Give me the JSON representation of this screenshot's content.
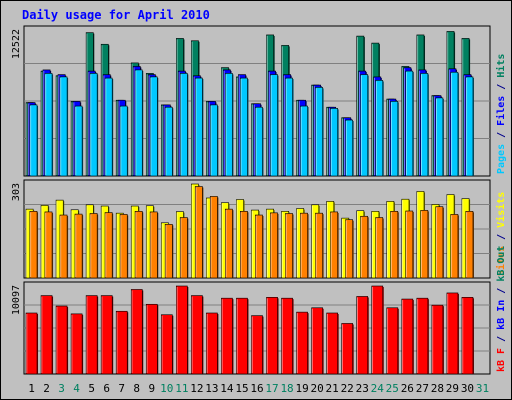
{
  "chart_data": {
    "type": "bar",
    "title": "Daily usage for April 2010",
    "days": [
      1,
      2,
      3,
      4,
      5,
      6,
      7,
      8,
      9,
      10,
      11,
      12,
      13,
      14,
      15,
      16,
      17,
      18,
      19,
      20,
      21,
      22,
      23,
      24,
      25,
      26,
      27,
      28,
      29,
      30,
      31
    ],
    "weekend_days": [
      3,
      4,
      10,
      11,
      17,
      18,
      24,
      25,
      31
    ],
    "grid": true,
    "panels": [
      {
        "name": "hits-files-pages",
        "ymax_label": "12522",
        "ymax": 12522,
        "right_label_parts": [
          {
            "text": "Pages",
            "color": "#00c8ff"
          },
          {
            "text": " / ",
            "color": "#00008b"
          },
          {
            "text": "Files",
            "color": "#0000ff"
          },
          {
            "text": " / ",
            "color": "#00008b"
          },
          {
            "text": "Hits",
            "color": "#008060"
          }
        ],
        "series": [
          {
            "name": "Hits",
            "color": "#008060",
            "values": [
              6300,
              9000,
              8600,
              6400,
              12300,
              11300,
              6500,
              9700,
              8800,
              6100,
              11800,
              11600,
              6400,
              9300,
              8500,
              6200,
              12100,
              11200,
              6500,
              7800,
              5900,
              5000,
              12000,
              11400,
              6600,
              9400,
              12100,
              6900,
              12400,
              11800,
              null
            ]
          },
          {
            "name": "Files",
            "color": "#0000ff",
            "values": [
              6300,
              9100,
              8700,
              6400,
              9000,
              8700,
              6500,
              9400,
              8700,
              6100,
              9000,
              8600,
              6400,
              9100,
              8700,
              6200,
              9000,
              8700,
              6500,
              7800,
              5900,
              5000,
              9000,
              8500,
              6600,
              9300,
              9100,
              6900,
              9200,
              8700,
              null
            ]
          },
          {
            "name": "Pages",
            "color": "#00c8ff",
            "values": [
              6100,
              8800,
              8500,
              6000,
              8800,
              8400,
              6000,
              9100,
              8500,
              5900,
              8800,
              8400,
              6100,
              8800,
              8400,
              5900,
              8700,
              8400,
              6000,
              7600,
              5800,
              4800,
              8700,
              8200,
              6400,
              9000,
              8800,
              6700,
              8900,
              8500,
              null
            ]
          }
        ]
      },
      {
        "name": "visits-sites",
        "ymax_label": "303",
        "ymax": 303,
        "right_label_parts": [
          {
            "text": "Sites",
            "color": "#ff8000"
          },
          {
            "text": " / ",
            "color": "#00008b"
          },
          {
            "text": "Visits",
            "color": "#ffff00"
          }
        ],
        "series": [
          {
            "name": "Visits",
            "color": "#ffff00",
            "values": [
              222,
              234,
              251,
              220,
              236,
              232,
              209,
              232,
              233,
              178,
              214,
              303,
              258,
              243,
              253,
              219,
              222,
              215,
              224,
              236,
              247,
              193,
              217,
              215,
              247,
              254,
              279,
              237,
              269,
              256,
              null
            ]
          },
          {
            "name": "Sites",
            "color": "#ff8000",
            "values": [
              215,
              213,
              203,
              206,
              208,
              211,
              205,
              215,
              213,
              173,
              195,
              295,
              263,
              222,
              215,
              203,
              210,
              208,
              209,
              209,
              213,
              188,
              199,
              195,
              215,
              216,
              218,
              230,
              205,
              215,
              null
            ]
          }
        ]
      },
      {
        "name": "kbin-kbout-kbf",
        "ymax_label": "10097",
        "ymax": 10097,
        "right_label_parts": [
          {
            "text": "kB F",
            "color": "#ff0000"
          },
          {
            "text": " / ",
            "color": "#00008b"
          },
          {
            "text": "kB In",
            "color": "#0000ff"
          },
          {
            "text": " / ",
            "color": "#00008b"
          },
          {
            "text": "kB Out",
            "color": "#008060"
          }
        ],
        "series": [
          {
            "name": "kB F",
            "color": "#ff0000",
            "values": [
              7000,
              9000,
              7800,
              6900,
              9000,
              9000,
              7200,
              9700,
              8000,
              6800,
              10097,
              9000,
              7000,
              8700,
              8700,
              6700,
              8800,
              8700,
              7100,
              7600,
              7000,
              5800,
              8900,
              10097,
              7600,
              8600,
              8700,
              7900,
              9300,
              8800,
              null
            ]
          }
        ]
      }
    ]
  }
}
